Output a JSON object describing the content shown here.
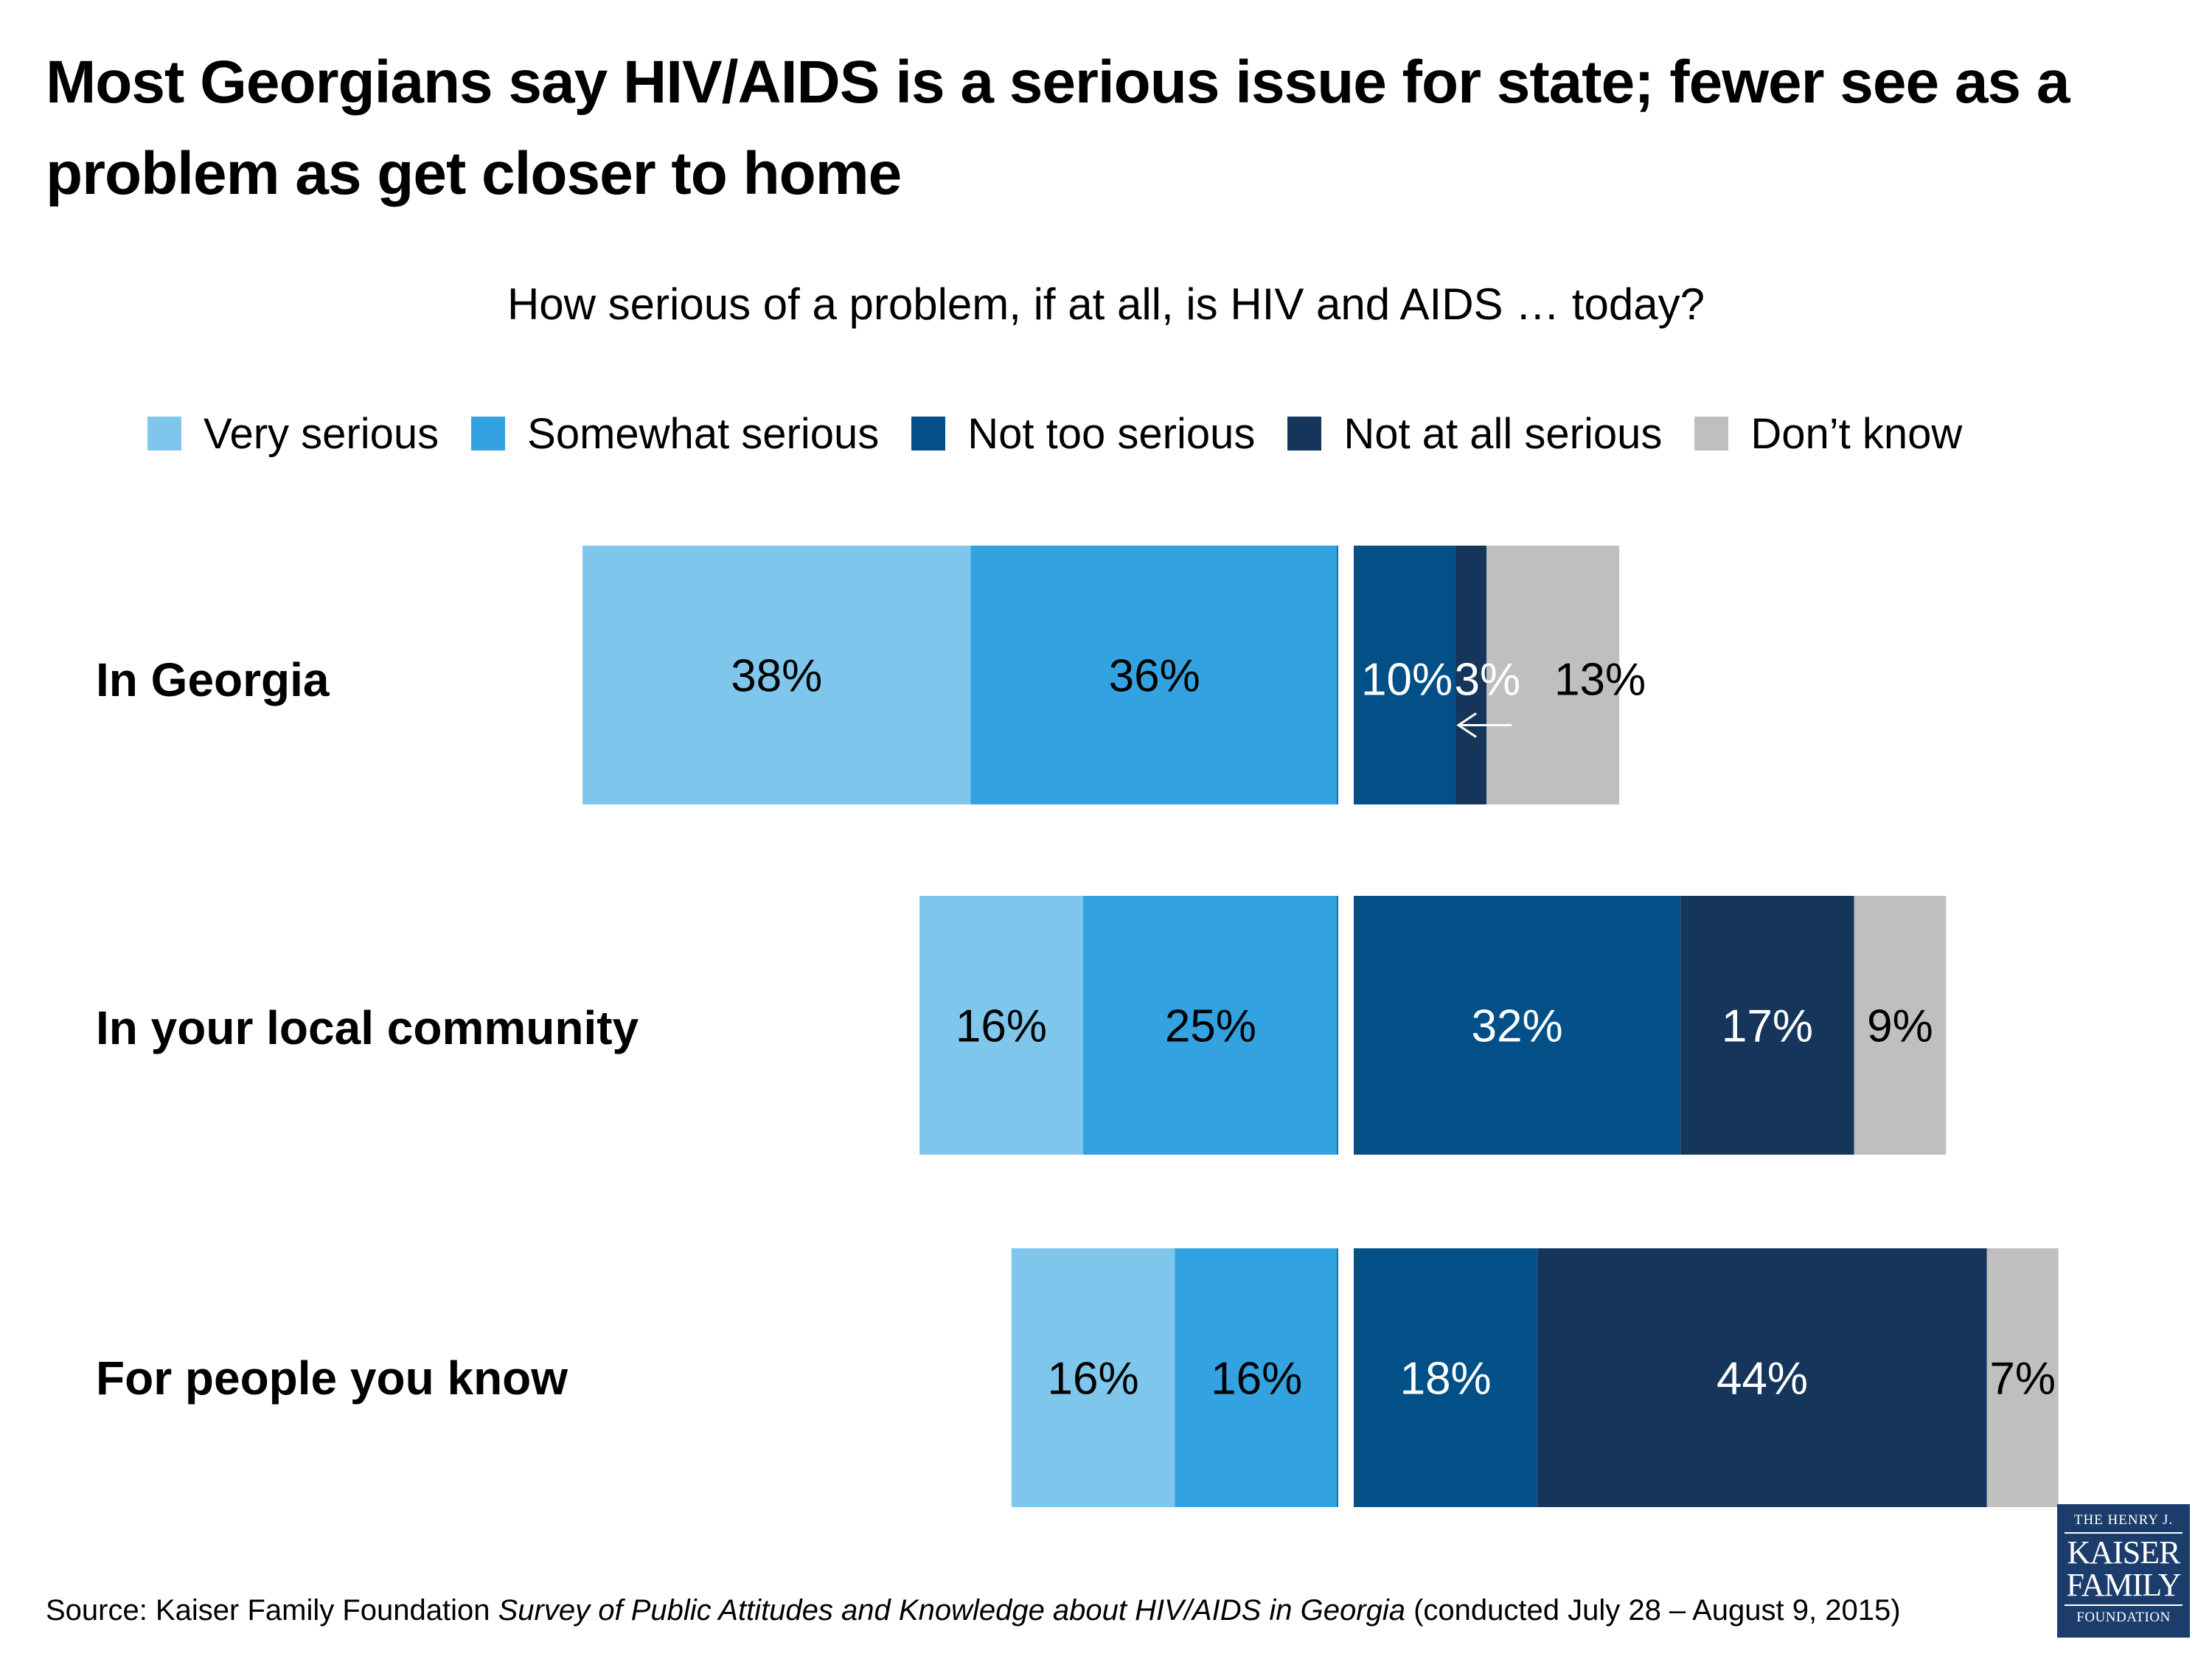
{
  "title": "Most Georgians say HIV/AIDS is a serious issue for state; fewer see as a problem as get closer to home",
  "source": {
    "prefix": "Source: Kaiser Family Foundation ",
    "italic": "Survey of Public Attitudes and Knowledge about HIV/AIDS in Georgia",
    "suffix": " (conducted July 28 – August 9, 2015)"
  },
  "logo": {
    "line1": "THE HENRY J.",
    "line2": "KAISER",
    "line3": "FAMILY",
    "line4": "FOUNDATION"
  },
  "chart_data": {
    "type": "bar",
    "orientation": "horizontal-diverging-stacked",
    "title": "How serious of a problem, if at all, is HIV and AIDS … today?",
    "xlabel": "",
    "ylabel": "",
    "grid": false,
    "legend_position": "top",
    "categories": [
      "In Georgia",
      "In your local community",
      "For people you know"
    ],
    "series": [
      {
        "name": "Very serious",
        "side": "left",
        "color": "#7fc6ed",
        "label_color": "#000000",
        "values": [
          38,
          16,
          16
        ]
      },
      {
        "name": "Somewhat serious",
        "side": "left",
        "color": "#33a2e0",
        "label_color": "#000000",
        "values": [
          36,
          25,
          16
        ]
      },
      {
        "name": "Not too serious",
        "side": "right",
        "color": "#035088",
        "label_color": "#ffffff",
        "values": [
          10,
          32,
          18
        ]
      },
      {
        "name": "Not at all serious",
        "side": "right",
        "color": "#15355b",
        "label_color": "#ffffff",
        "values": [
          3,
          17,
          44
        ]
      },
      {
        "name": "Don’t know",
        "side": "right",
        "color": "#bfbfbf",
        "label_color": "#000000",
        "values": [
          13,
          9,
          7
        ]
      }
    ],
    "value_suffix": "%",
    "annotations": [
      {
        "type": "arrow",
        "text": "",
        "points_to": "In Georgia / Not at all serious",
        "direction": "left",
        "color": "#ffffff"
      }
    ]
  }
}
